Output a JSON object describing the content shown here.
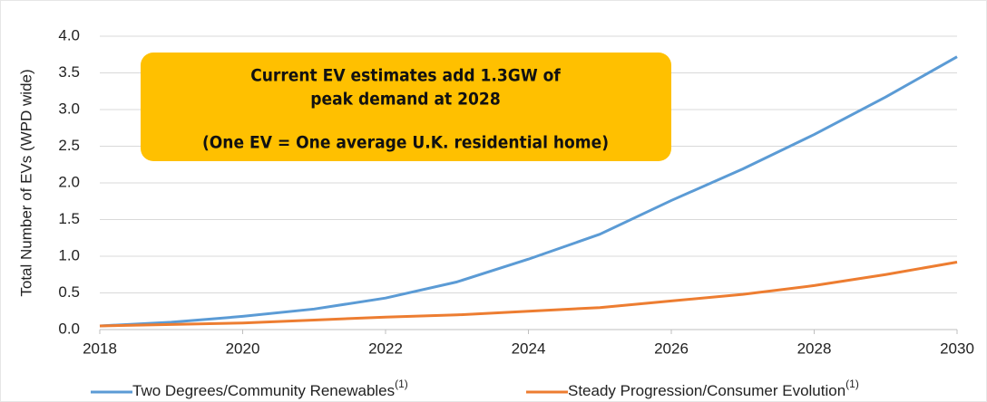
{
  "chart_data": {
    "type": "line",
    "y_label": "Total Number of EVs (WPD wide)",
    "annotation": [
      "Current EV estimates add 1.3GW of",
      "peak demand at 2028",
      "(One EV = One average U.K. residential home)"
    ],
    "annotation_color": "#ffc000",
    "x": [
      2018,
      2019,
      2020,
      2021,
      2022,
      2023,
      2024,
      2025,
      2026,
      2027,
      2028,
      2029,
      2030
    ],
    "xlim": [
      2018,
      2030
    ],
    "xticks": [
      2018,
      2020,
      2022,
      2024,
      2026,
      2028,
      2030
    ],
    "ylim": [
      0,
      4
    ],
    "yticks": [
      {
        "value": 0,
        "label": "0.0"
      },
      0.5,
      {
        "value": 1,
        "label": "1.0"
      },
      1.5,
      {
        "value": 2,
        "label": "2.0"
      },
      2.5,
      {
        "value": 3,
        "label": "3.0"
      },
      3.5,
      {
        "value": 4,
        "label": "4.0"
      }
    ],
    "grid": true,
    "series": [
      {
        "name": "Two Degrees/Community Renewables",
        "footnote": "(1)",
        "color": "#5b9bd5",
        "values": [
          0.05,
          0.1,
          0.18,
          0.28,
          0.43,
          0.65,
          0.96,
          1.3,
          1.76,
          2.19,
          2.66,
          3.17,
          3.72
        ]
      },
      {
        "name": "Steady Progression/Consumer Evolution",
        "footnote": "(1)",
        "color": "#ed7d31",
        "values": [
          0.05,
          0.07,
          0.09,
          0.13,
          0.17,
          0.2,
          0.25,
          0.3,
          0.39,
          0.48,
          0.6,
          0.75,
          0.92
        ]
      }
    ]
  }
}
